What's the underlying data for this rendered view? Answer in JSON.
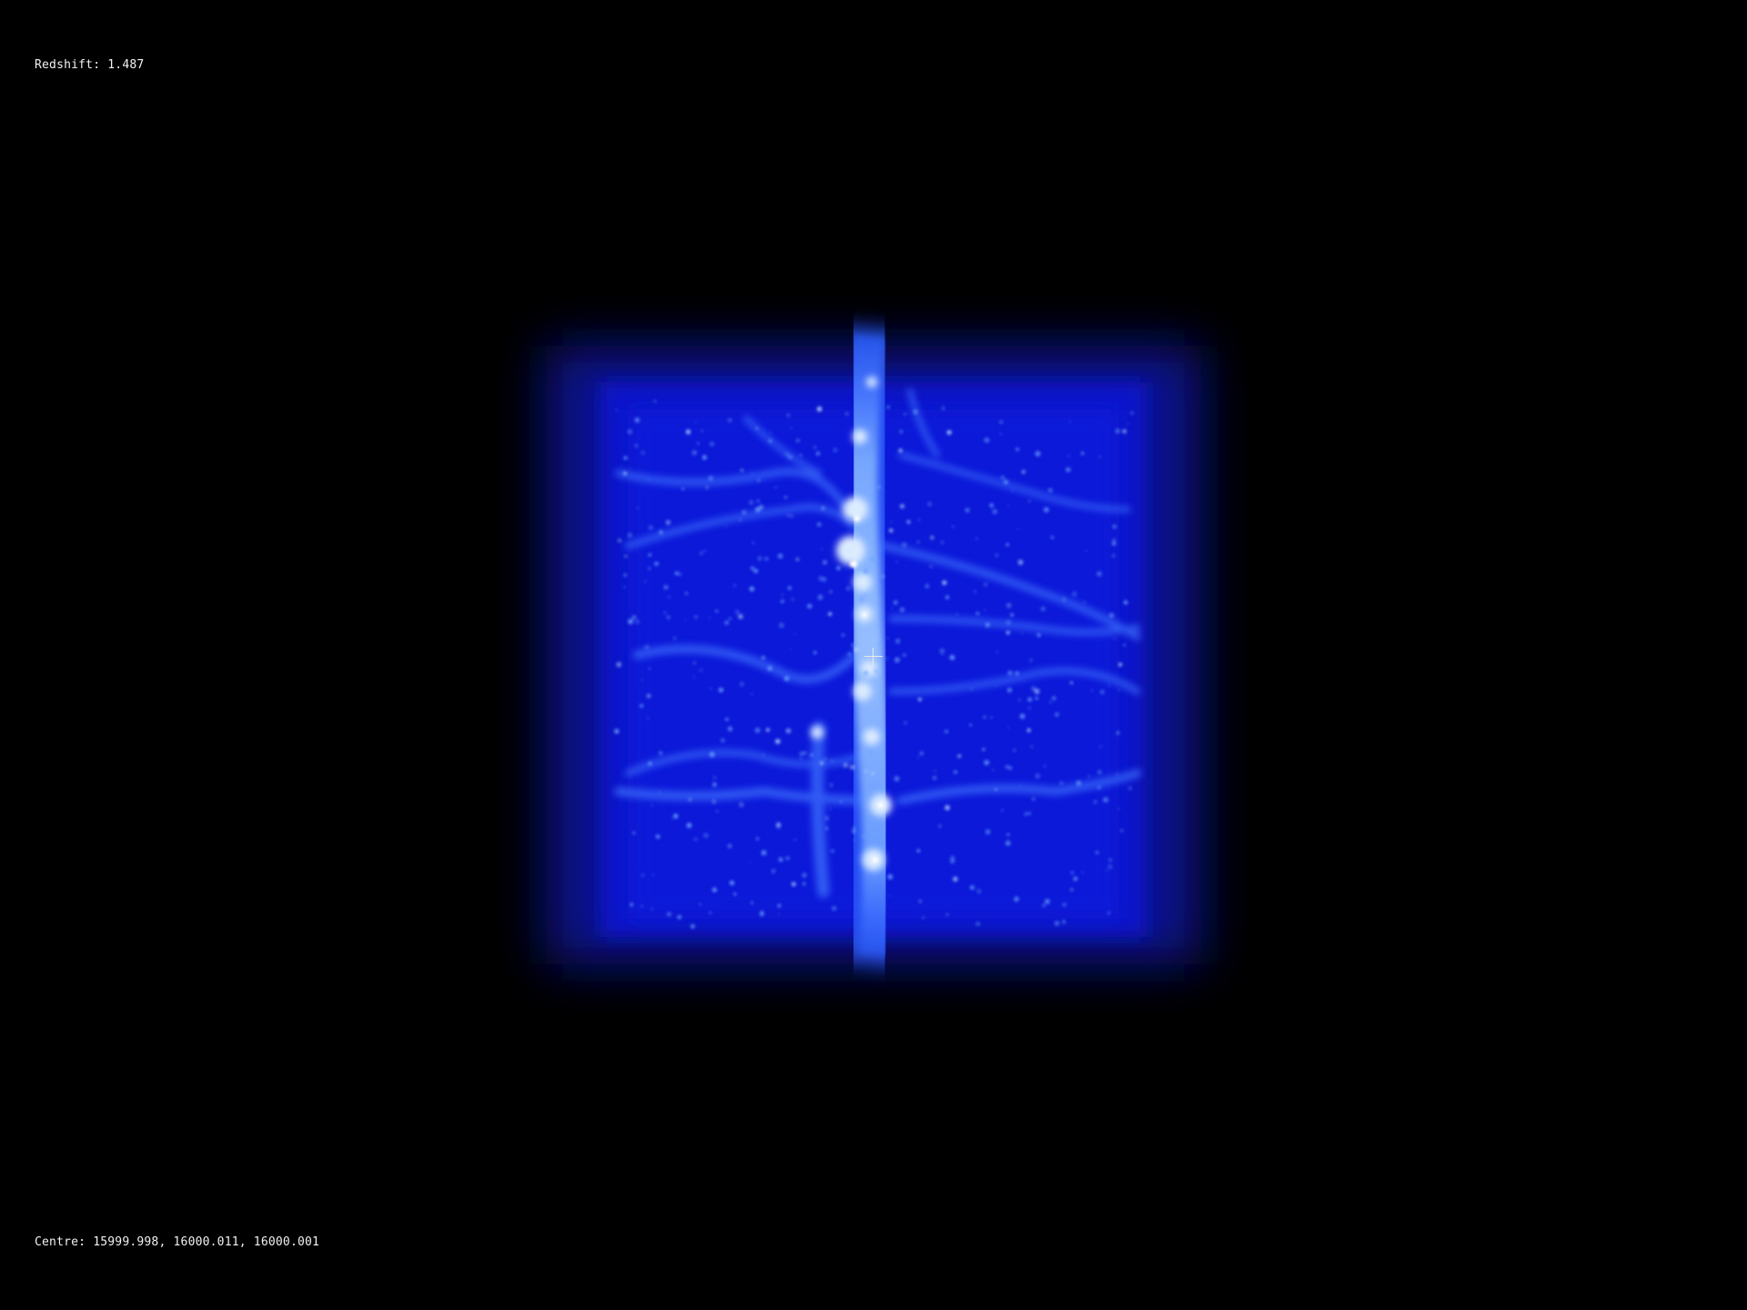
{
  "viewer": {
    "redshift_label": "Redshift:",
    "redshift_value": "1.487",
    "centre_label": "Centre:",
    "centre_value": "15999.998, 16000.011, 16000.001"
  },
  "colors": {
    "background": "#000000",
    "cube_glow": "#0a16c8",
    "filament_core": "#cfe6ff",
    "filament_mid": "#4f8dff",
    "hud_text": "#f2f2f2"
  },
  "icons": {
    "crosshair": "crosshair-icon"
  }
}
